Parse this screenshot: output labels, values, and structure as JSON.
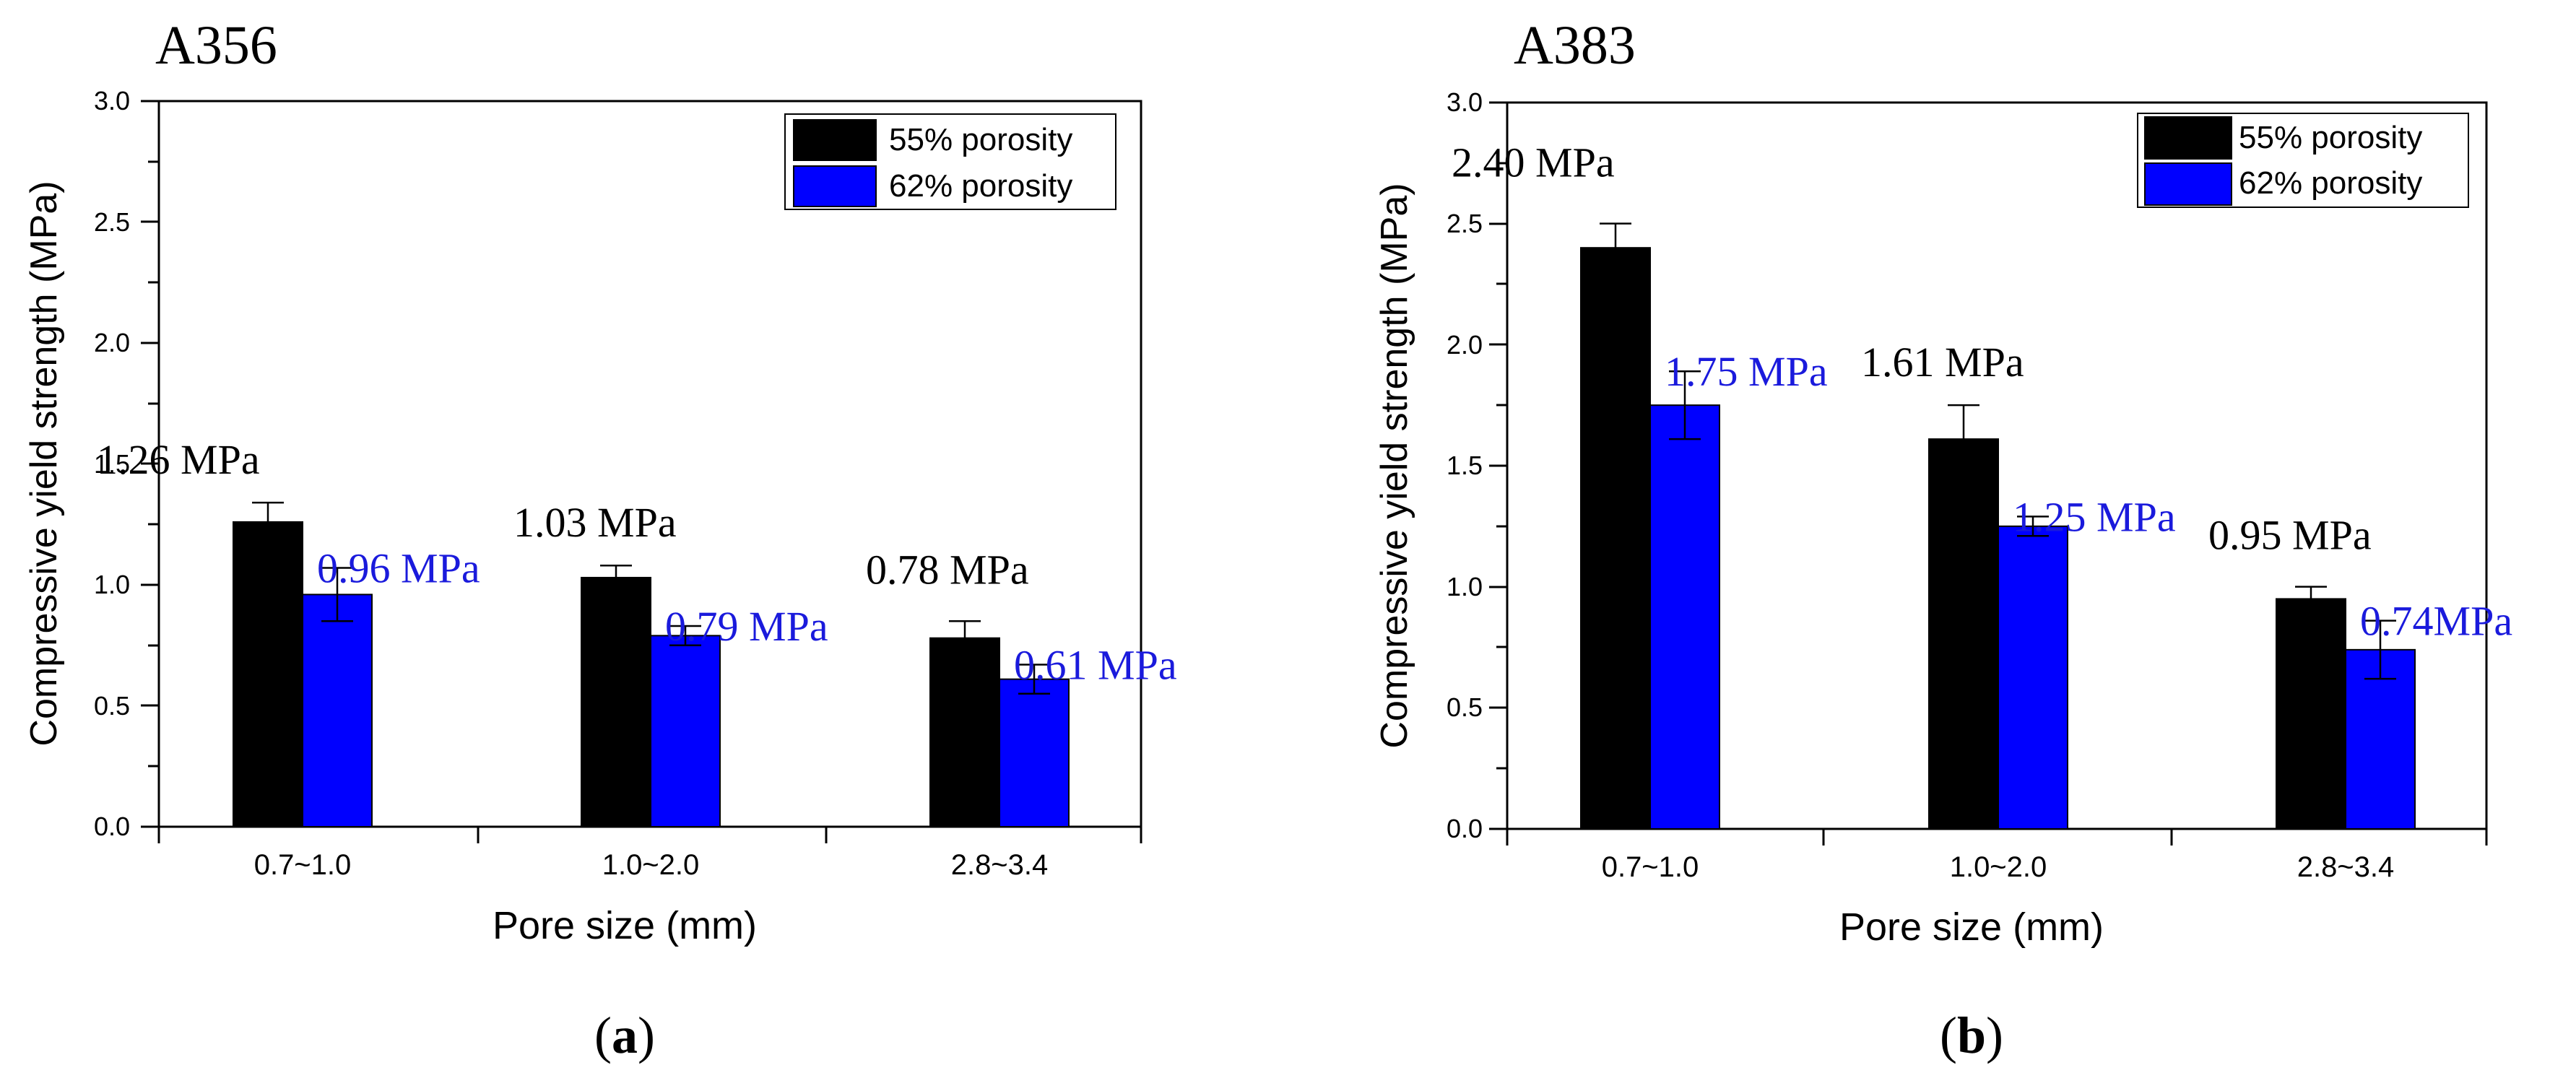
{
  "colors": {
    "series_55": "#000000",
    "series_62": "#0000ff",
    "label_55": "#000000",
    "label_62": "#1a1adc"
  },
  "chart_data": [
    {
      "id": "a",
      "type": "bar",
      "title": "A356",
      "panel_label": "a",
      "xlabel": "Pore size (mm)",
      "ylabel": "Compressive yield strength (MPa)",
      "ylim": [
        0,
        3.0
      ],
      "yticks": [
        "0.0",
        "0.5",
        "1.0",
        "1.5",
        "2.0",
        "2.5",
        "3.0"
      ],
      "categories": [
        "0.7~1.0",
        "1.0~2.0",
        "2.8~3.4"
      ],
      "legend": {
        "placement": "top-right",
        "entries": [
          "55% porosity",
          "62% porosity"
        ]
      },
      "series": [
        {
          "name": "55% porosity",
          "values": [
            1.26,
            1.03,
            0.78
          ],
          "errors": [
            0.08,
            0.05,
            0.07
          ],
          "labels": [
            "1.26 MPa",
            "1.03 MPa",
            "0.78 MPa"
          ]
        },
        {
          "name": "62% porosity",
          "values": [
            0.96,
            0.79,
            0.61
          ],
          "errors": [
            0.11,
            0.04,
            0.06
          ],
          "labels": [
            "0.96 MPa",
            "0.79 MPa",
            "0.61 MPa"
          ]
        }
      ]
    },
    {
      "id": "b",
      "type": "bar",
      "title": "A383",
      "panel_label": "b",
      "xlabel": "Pore size (mm)",
      "ylabel": "Compressive yield strength (MPa)",
      "ylim": [
        0,
        3.0
      ],
      "yticks": [
        "0.0",
        "0.5",
        "1.0",
        "1.5",
        "2.0",
        "2.5",
        "3.0"
      ],
      "categories": [
        "0.7~1.0",
        "1.0~2.0",
        "2.8~3.4"
      ],
      "legend": {
        "placement": "top-right",
        "entries": [
          "55% porosity",
          "62% porosity"
        ]
      },
      "series": [
        {
          "name": "55% porosity",
          "values": [
            2.4,
            1.61,
            0.95
          ],
          "errors": [
            0.1,
            0.14,
            0.05
          ],
          "labels": [
            "2.40 MPa",
            "1.61 MPa",
            "0.95 MPa"
          ]
        },
        {
          "name": "62% porosity",
          "values": [
            1.75,
            1.25,
            0.74
          ],
          "errors": [
            0.14,
            0.04,
            0.12
          ],
          "labels": [
            "1.75 MPa",
            "1.25 MPa",
            "0.74MPa"
          ]
        }
      ]
    }
  ]
}
